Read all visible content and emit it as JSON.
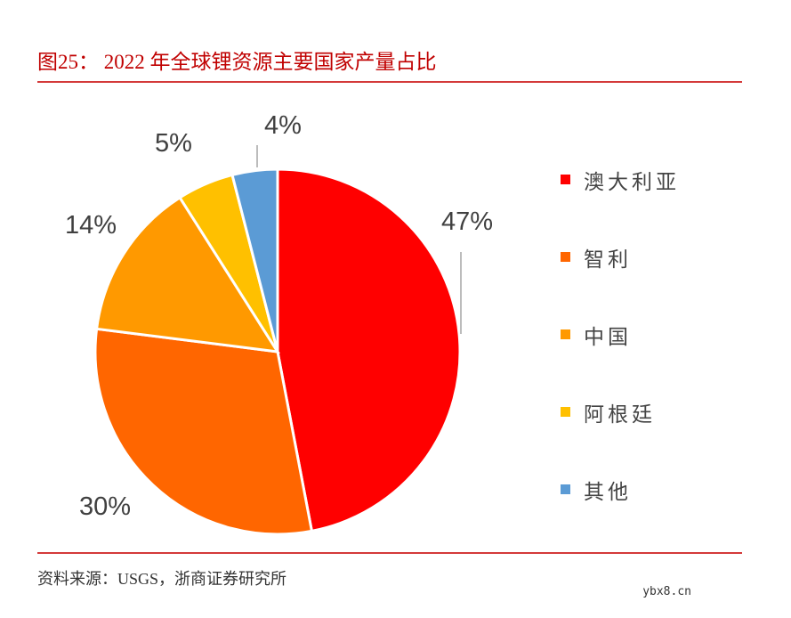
{
  "title": "图25：  2022 年全球锂资源主要国家产量占比",
  "source": "资料来源：USGS，浙商证券研究所",
  "watermark": "ybx8.cn",
  "chart_data": {
    "type": "pie",
    "categories": [
      "澳大利亚",
      "智利",
      "中国",
      "阿根廷",
      "其他"
    ],
    "values": [
      47,
      30,
      14,
      5,
      4
    ],
    "labels": [
      "47%",
      "30%",
      "14%",
      "5%",
      "4%"
    ],
    "colors": [
      "#ff0000",
      "#ff6600",
      "#ff9900",
      "#ffc000",
      "#5b9bd5"
    ],
    "legend": "right"
  }
}
